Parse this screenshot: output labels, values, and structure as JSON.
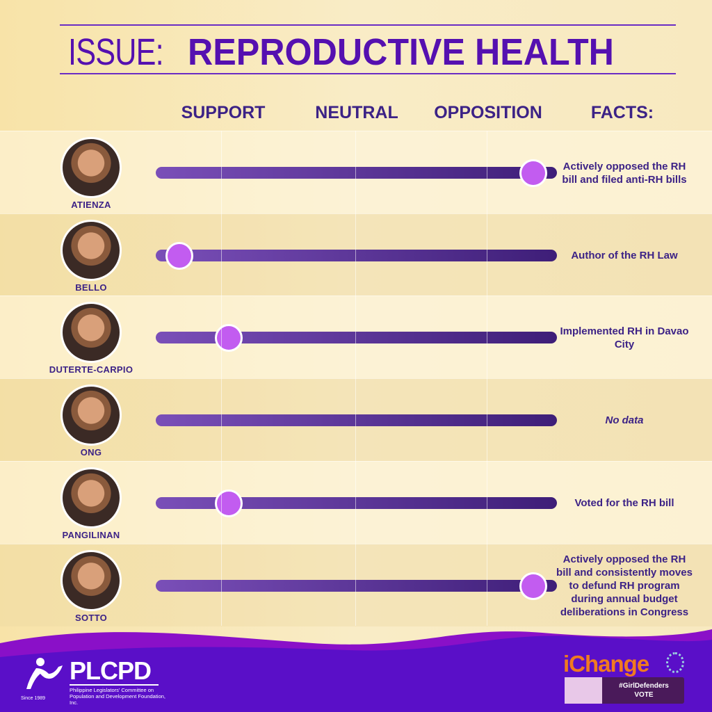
{
  "header": {
    "title_prefix": "ISSUE:",
    "title_main": "REPRODUCTIVE HEALTH"
  },
  "columns": {
    "support": "SUPPORT",
    "neutral": "NEUTRAL",
    "opposition": "OPPOSITION",
    "facts": "FACTS:"
  },
  "scale_note": "position: 0 = support end, 1 = opposition end",
  "colors": {
    "accent": "#5510b0",
    "knob": "#c25cf0",
    "footer": "#5a0fc8"
  },
  "candidates": [
    {
      "name": "ATIENZA",
      "position": 0.97,
      "fact": "Actively opposed the RH bill and filed anti-RH bills",
      "fact_italic": false
    },
    {
      "name": "BELLO",
      "position": 0.03,
      "fact": "Author of the RH Law",
      "fact_italic": false
    },
    {
      "name": "DUTERTE-CARPIO",
      "position": 0.16,
      "fact": "Implemented RH in Davao City",
      "fact_italic": false
    },
    {
      "name": "ONG",
      "position": null,
      "fact": "No data",
      "fact_italic": true
    },
    {
      "name": "PANGILINAN",
      "position": 0.16,
      "fact": "Voted for the RH bill",
      "fact_italic": false
    },
    {
      "name": "SOTTO",
      "position": 0.97,
      "fact": "Actively opposed the RH bill and consistently moves to defund RH program during annual budget deliberations in Congress",
      "fact_italic": false
    }
  ],
  "footer": {
    "plcpd": {
      "name": "PLCPD",
      "subtitle": "Philippine Legislators' Committee on Population and Development Foundation, Inc.",
      "since": "Since 1989"
    },
    "ichange": {
      "name": "iChange",
      "tag": "#GirlDefenders",
      "vote": "VOTE"
    }
  }
}
